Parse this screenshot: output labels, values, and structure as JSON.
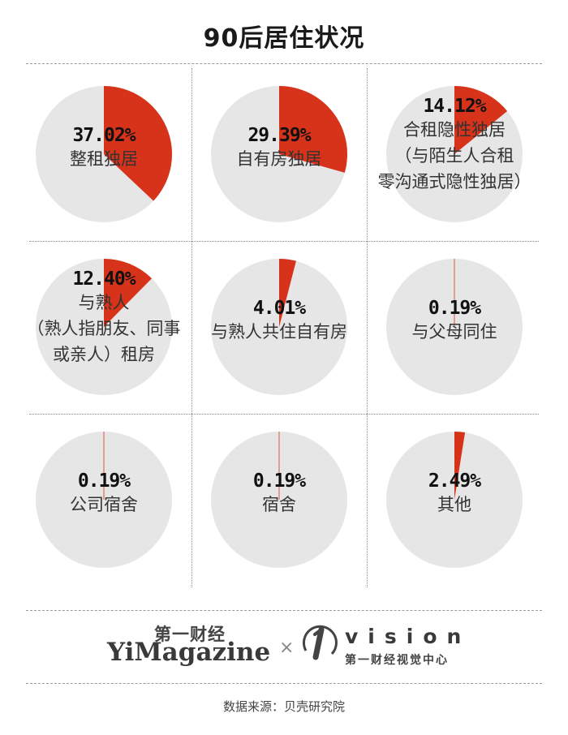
{
  "page": {
    "title": "90后居住状况",
    "source": "数据来源：贝壳研究院"
  },
  "footer": {
    "yimagazine_cn": "第一财经",
    "yimagazine_en": "YiMagazine",
    "separator": "×",
    "vision_en": "vision",
    "vision_cn": "第一财经视觉中心"
  },
  "colors": {
    "slice": "#d7321a",
    "rest": "#e6e6e6"
  },
  "chart_data": {
    "type": "pie",
    "title": "90后居住状况",
    "pies": [
      {
        "label": "37.02%",
        "value": 37.02,
        "category": [
          "整租独居"
        ]
      },
      {
        "label": "29.39%",
        "value": 29.39,
        "category": [
          "自有房独居"
        ]
      },
      {
        "label": "14.12%",
        "value": 14.12,
        "category": [
          "合租隐性独居",
          "（与陌生人合租",
          "零沟通式隐性独居）"
        ]
      },
      {
        "label": "12.40%",
        "value": 12.4,
        "category": [
          "与熟人",
          "（熟人指朋友、同事",
          "或亲人）租房"
        ]
      },
      {
        "label": "4.01%",
        "value": 4.01,
        "category": [
          "与熟人共住自有房"
        ]
      },
      {
        "label": "0.19%",
        "value": 0.19,
        "category": [
          "与父母同住"
        ]
      },
      {
        "label": "0.19%",
        "value": 0.19,
        "category": [
          "公司宿舍"
        ]
      },
      {
        "label": "0.19%",
        "value": 0.19,
        "category": [
          "宿舍"
        ]
      },
      {
        "label": "2.49%",
        "value": 2.49,
        "category": [
          "其他"
        ]
      }
    ]
  }
}
